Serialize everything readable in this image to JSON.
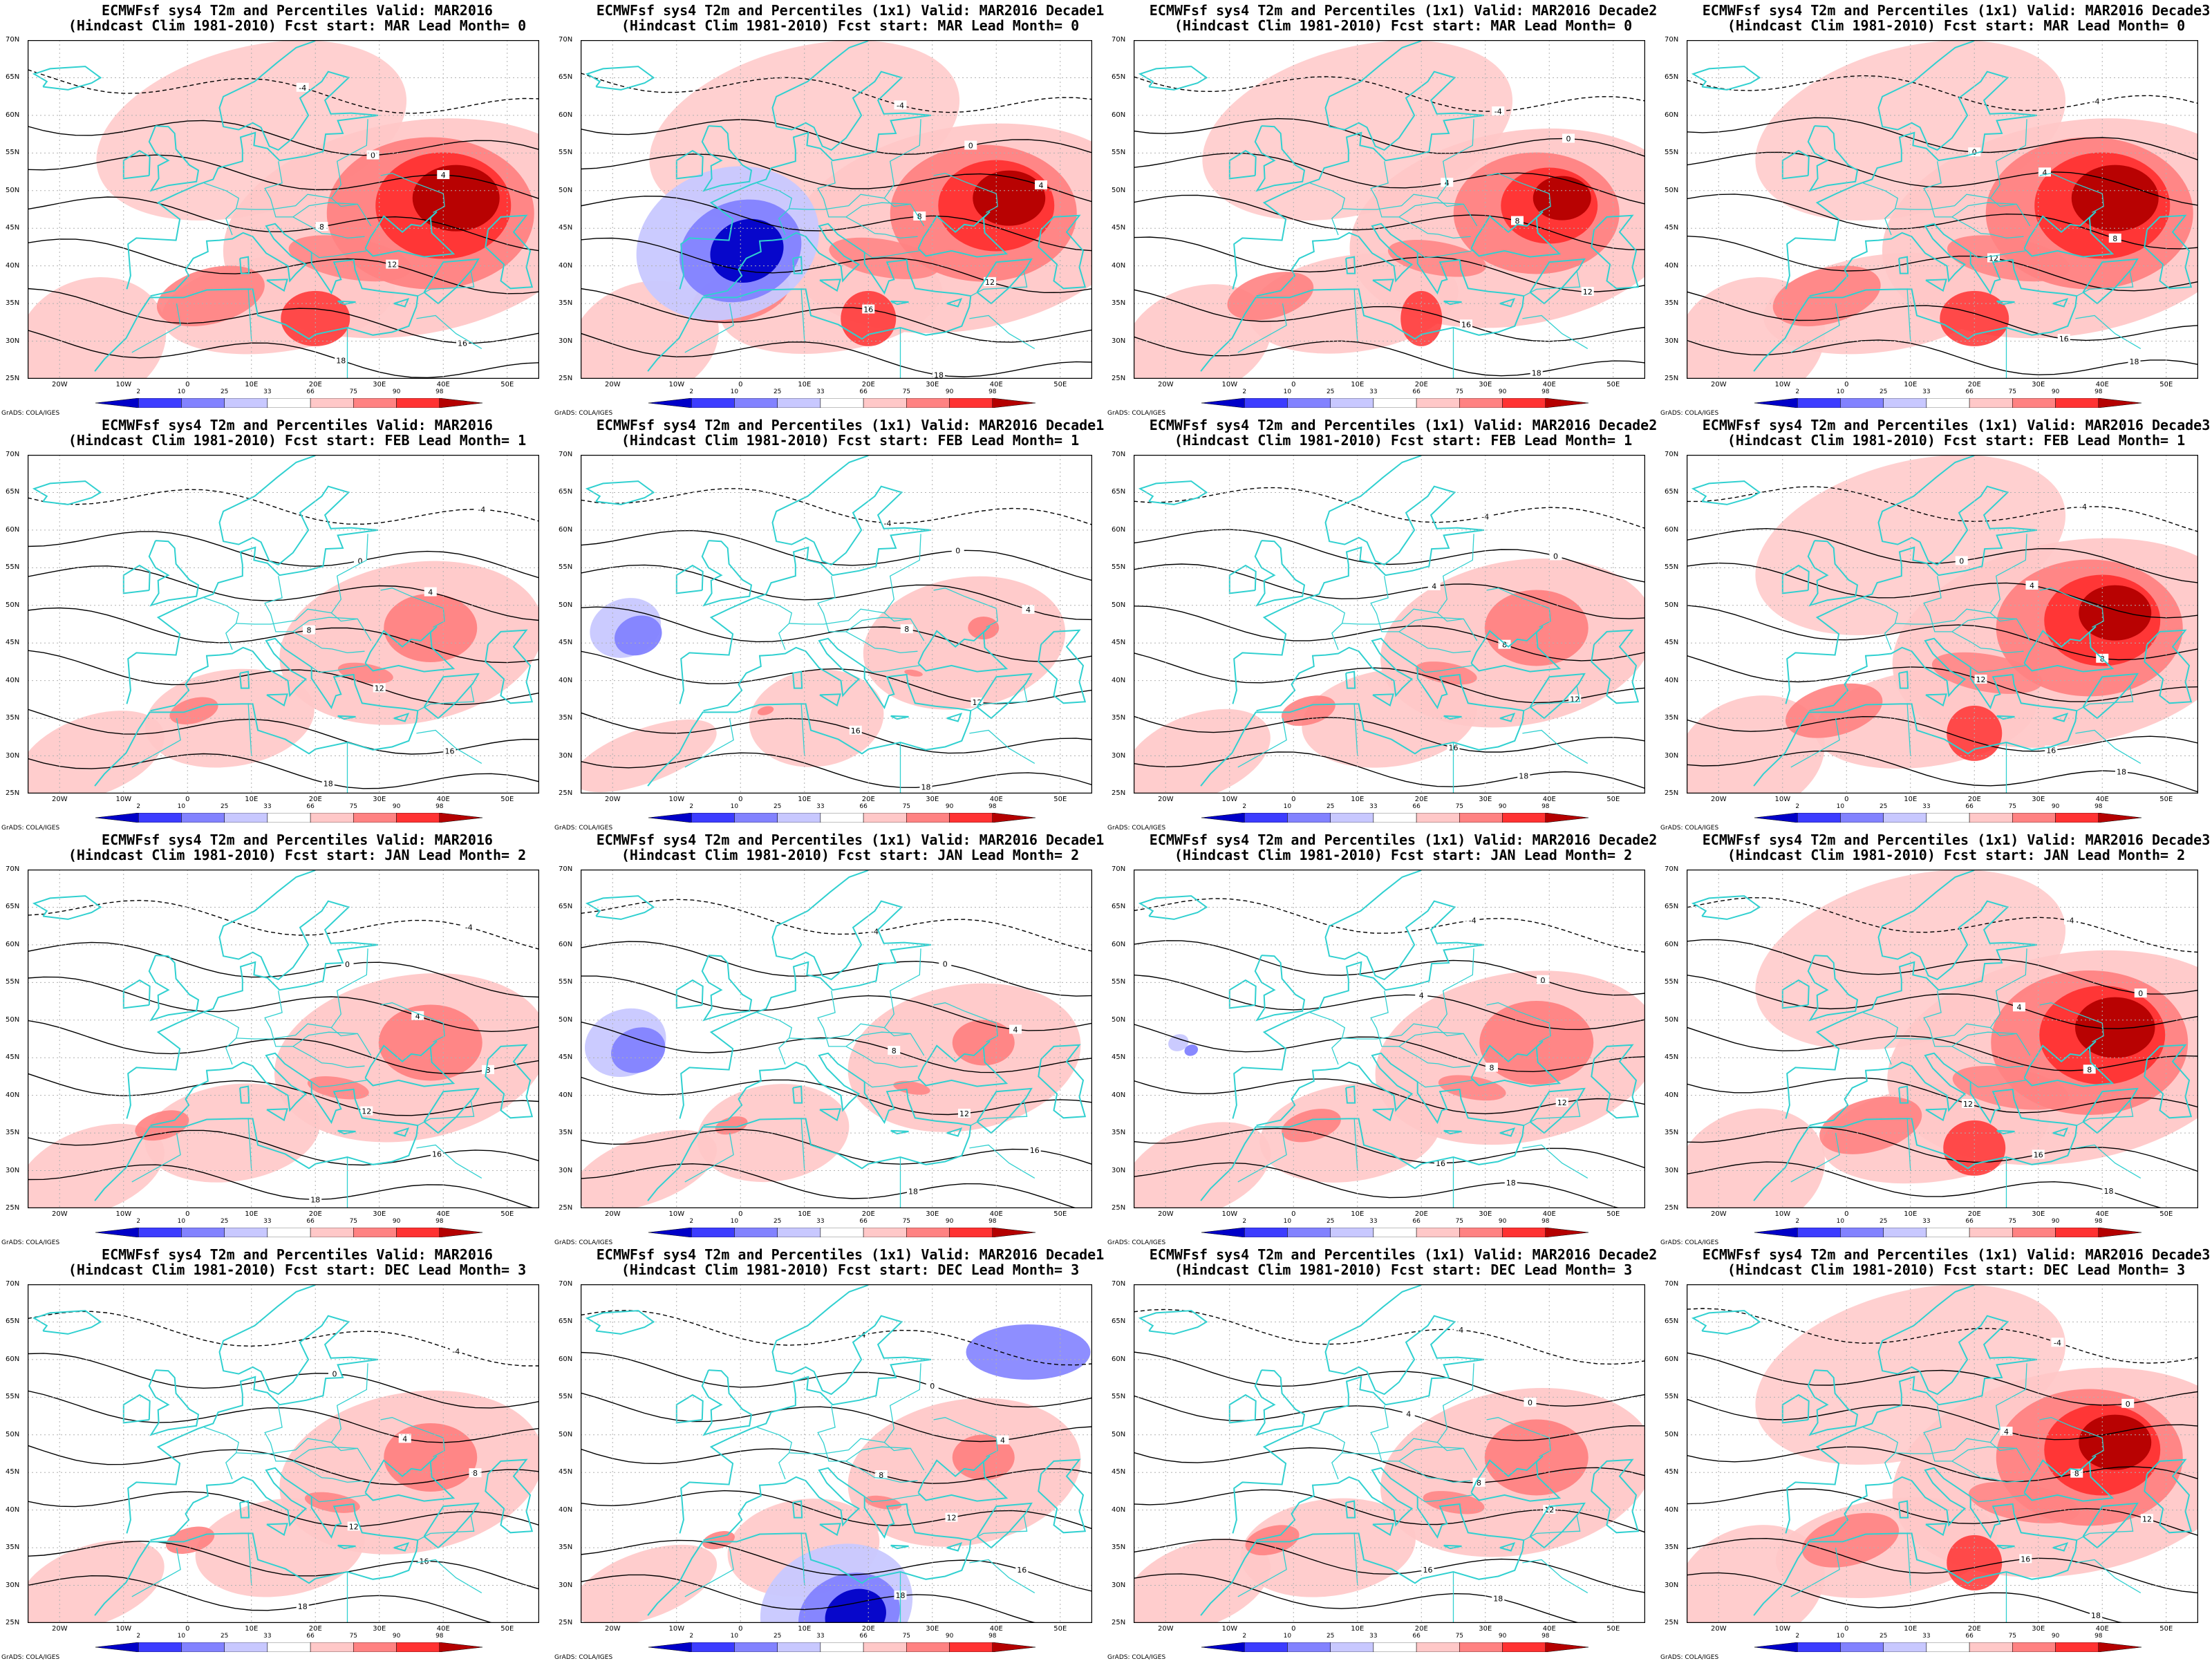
{
  "panels": [
    {
      "title1": "ECMWFsf sys4  T2m and Percentiles Valid: MAR2016",
      "title2": "(Hindcast Clim 1981-2010) Fcst start: MAR  Lead Month= 0",
      "anomaly": 1,
      "cold": 0
    },
    {
      "title1": "ECMWFsf sys4  T2m and Percentiles (1x1) Valid: MAR2016 Decade1",
      "title2": "(Hindcast Clim 1981-2010) Fcst start: MAR  Lead Month= 0",
      "anomaly": 0.9,
      "cold": 0.9
    },
    {
      "title1": "ECMWFsf sys4  T2m and Percentiles (1x1) Valid: MAR2016 Decade2",
      "title2": "(Hindcast Clim 1981-2010) Fcst start: MAR  Lead Month= 0",
      "anomaly": 0.8,
      "cold": 0
    },
    {
      "title1": "ECMWFsf sys4  T2m and Percentiles (1x1) Valid: MAR2016 Decade3",
      "title2": "(Hindcast Clim 1981-2010) Fcst start: MAR  Lead Month= 0",
      "anomaly": 1,
      "cold": 0
    },
    {
      "title1": "ECMWFsf sys4  T2m and Percentiles Valid: MAR2016",
      "title2": "(Hindcast Clim 1981-2010) Fcst start: FEB  Lead Month= 1",
      "anomaly": 0.45,
      "cold": 0
    },
    {
      "title1": "ECMWFsf sys4  T2m and Percentiles (1x1) Valid: MAR2016 Decade1",
      "title2": "(Hindcast Clim 1981-2010) Fcst start: FEB  Lead Month= 1",
      "anomaly": 0.15,
      "cold": 0.35
    },
    {
      "title1": "ECMWFsf sys4  T2m and Percentiles (1x1) Valid: MAR2016 Decade2",
      "title2": "(Hindcast Clim 1981-2010) Fcst start: FEB  Lead Month= 1",
      "anomaly": 0.5,
      "cold": 0
    },
    {
      "title1": "ECMWFsf sys4  T2m and Percentiles (1x1) Valid: MAR2016 Decade3",
      "title2": "(Hindcast Clim 1981-2010) Fcst start: FEB  Lead Month= 1",
      "anomaly": 0.9,
      "cold": 0
    },
    {
      "title1": "ECMWFsf sys4  T2m and Percentiles Valid: MAR2016",
      "title2": "(Hindcast Clim 1981-2010) Fcst start: JAN  Lead Month= 2",
      "anomaly": 0.5,
      "cold": 0
    },
    {
      "title1": "ECMWFsf sys4  T2m and Percentiles (1x1) Valid: MAR2016 Decade1",
      "title2": "(Hindcast Clim 1981-2010) Fcst start: JAN  Lead Month= 2",
      "anomaly": 0.3,
      "cold": 0.4
    },
    {
      "title1": "ECMWFsf sys4  T2m and Percentiles (1x1) Valid: MAR2016 Decade2",
      "title2": "(Hindcast Clim 1981-2010) Fcst start: JAN  Lead Month= 2",
      "anomaly": 0.55,
      "cold": 0.1
    },
    {
      "title1": "ECMWFsf sys4  T2m and Percentiles (1x1) Valid: MAR2016 Decade3",
      "title2": "(Hindcast Clim 1981-2010) Fcst start: JAN  Lead Month= 2",
      "anomaly": 0.95,
      "cold": 0
    },
    {
      "title1": "ECMWFsf sys4  T2m and Percentiles Valid: MAR2016",
      "title2": "(Hindcast Clim 1981-2010) Fcst start: DEC  Lead Month= 3",
      "anomaly": 0.45,
      "cold": 0
    },
    {
      "title1": "ECMWFsf sys4  T2m and Percentiles (1x1) Valid: MAR2016 Decade1",
      "title2": "(Hindcast Clim 1981-2010) Fcst start: DEC  Lead Month= 3",
      "anomaly": 0.3,
      "cold": 0.75
    },
    {
      "title1": "ECMWFsf sys4  T2m and Percentiles (1x1) Valid: MAR2016 Decade2",
      "title2": "(Hindcast Clim 1981-2010) Fcst start: DEC  Lead Month= 3",
      "anomaly": 0.5,
      "cold": 0
    },
    {
      "title1": "ECMWFsf sys4  T2m and Percentiles (1x1) Valid: MAR2016 Decade3",
      "title2": "(Hindcast Clim 1981-2010) Fcst start: DEC  Lead Month= 3",
      "anomaly": 0.9,
      "cold": 0
    }
  ],
  "lat_labels": [
    "70N",
    "65N",
    "60N",
    "55N",
    "50N",
    "45N",
    "40N",
    "35N",
    "30N",
    "25N"
  ],
  "lon_labels": [
    "20W",
    "10W",
    "0",
    "10E",
    "20E",
    "30E",
    "40E",
    "50E"
  ],
  "contour_labels": [
    "-4",
    "0",
    "4",
    "8",
    "12",
    "16",
    "18"
  ],
  "colorbar": {
    "labels": [
      "2",
      "10",
      "25",
      "33",
      "66",
      "75",
      "90",
      "98"
    ],
    "colors": [
      "#0000c8",
      "#3c3cff",
      "#8282ff",
      "#c8c8ff",
      "#ffffff",
      "#ffc8c8",
      "#ff8282",
      "#ff3232",
      "#b40000"
    ]
  },
  "credit": "GrADS: COLA/IGES",
  "colors": {
    "coast": "#30d0d0",
    "contour": "#000000",
    "grid": "#b0b0b0"
  }
}
